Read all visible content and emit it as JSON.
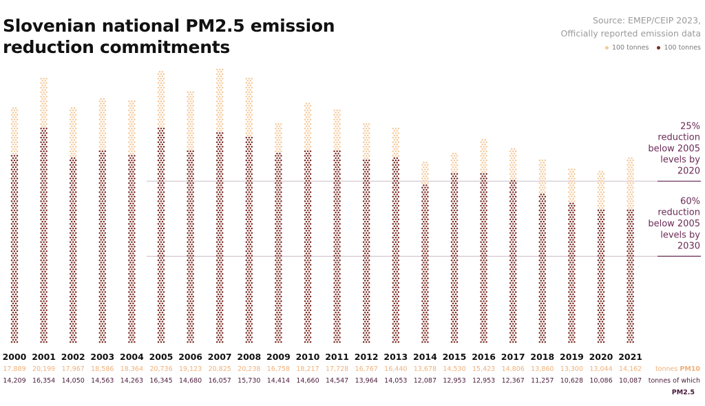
{
  "header": {
    "title": "Slovenian national PM2.5 emission reduction commitments",
    "source_line1": "Source: EMEP/CEIP 2023,",
    "source_line2": "Officially reported emission data"
  },
  "legend": {
    "pm10_label": "100 tonnes",
    "pm25_label": "100 tonnes"
  },
  "colors": {
    "pm10": "#f5c99a",
    "pm25": "#7a2a22",
    "pm10_text": "#f0b078",
    "pm25_text": "#4a1a3a",
    "target": "#6b2a55",
    "target_line": "#c9bcc4"
  },
  "chart_data": {
    "type": "bar",
    "categories": [
      "2000",
      "2001",
      "2002",
      "2003",
      "2004",
      "2005",
      "2006",
      "2007",
      "2008",
      "2009",
      "2010",
      "2011",
      "2012",
      "2013",
      "2014",
      "2015",
      "2016",
      "2017",
      "2018",
      "2019",
      "2020",
      "2021"
    ],
    "series": [
      {
        "name": "tonnes PM10",
        "values": [
          17889,
          20199,
          17967,
          18586,
          18364,
          20736,
          19123,
          20825,
          20238,
          16758,
          18217,
          17728,
          16767,
          16440,
          13678,
          14530,
          15423,
          14806,
          13860,
          13300,
          13044,
          14162
        ]
      },
      {
        "name": "tonnes of which PM2.5",
        "values": [
          14209,
          16354,
          14050,
          14563,
          14263,
          16345,
          14680,
          16057,
          15730,
          14414,
          14660,
          14547,
          13964,
          14053,
          12087,
          12953,
          12953,
          12367,
          11257,
          10628,
          10086,
          10087
        ]
      }
    ],
    "value_labels_pm10": [
      "17,889",
      "20,199",
      "17,967",
      "18,586",
      "18,364",
      "20,736",
      "19,123",
      "20,825",
      "20,238",
      "16,758",
      "18,217",
      "17,728",
      "16,767",
      "16,440",
      "13,678",
      "14,530",
      "15,423",
      "14,806",
      "13,860",
      "13,300",
      "13,044",
      "14,162"
    ],
    "value_labels_pm25": [
      "14,209",
      "16,354",
      "14,050",
      "14,563",
      "14,263",
      "16,345",
      "14,680",
      "16,057",
      "15,730",
      "14,414",
      "14,660",
      "14,547",
      "13,964",
      "14,053",
      "12,087",
      "12,953",
      "12,953",
      "12,367",
      "11,257",
      "10,628",
      "10,086",
      "10,087"
    ],
    "row_label_pm10_prefix": "tonnes",
    "row_label_pm10_bold": "PM10",
    "row_label_pm25_line1": "tonnes of which",
    "row_label_pm25_line2": "PM2.5",
    "dot_unit": 100,
    "ylim": [
      0,
      21000
    ],
    "targets": [
      {
        "value": 12259,
        "label": [
          "25%",
          "reduction",
          "below 2005",
          "levels by",
          "2020"
        ]
      },
      {
        "value": 6538,
        "label": [
          "60%",
          "reduction",
          "below 2005",
          "levels by",
          "2030"
        ]
      }
    ]
  }
}
